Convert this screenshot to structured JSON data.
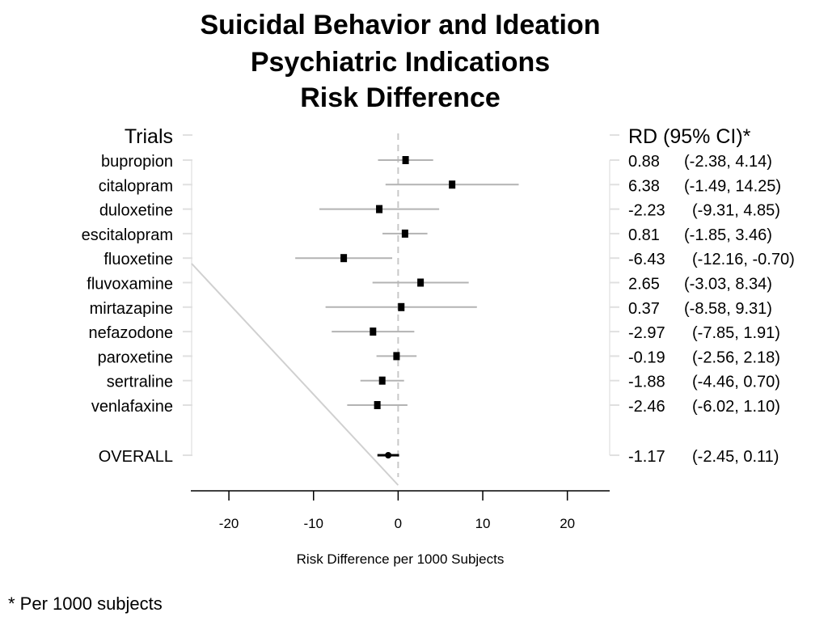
{
  "title": {
    "line1": "Suicidal Behavior and Ideation",
    "line2": "Psychiatric Indications",
    "line3": "Risk Difference"
  },
  "left_header": "Trials",
  "right_header": "RD (95% CI)*",
  "footnote": "* Per 1000 subjects",
  "colors": {
    "ci_line": "#b3b3b3",
    "marker": "#000000",
    "axis": "#000000",
    "diag": "#d0d0d0",
    "zero_line": "#c8c8c8"
  },
  "chart_data": {
    "type": "forest",
    "xlabel": "Risk Difference per 1000 Subjects",
    "xlim": [
      -24.5,
      25
    ],
    "xticks": [
      -20,
      -10,
      0,
      10,
      20
    ],
    "xtick_labels": [
      "-20",
      "-10",
      "0",
      "10",
      "20"
    ],
    "rows": [
      {
        "label": "bupropion",
        "rd": 0.88,
        "lo": -2.38,
        "hi": 4.14,
        "rd_text": "0.88",
        "ci_text": "(-2.38, 4.14)"
      },
      {
        "label": "citalopram",
        "rd": 6.38,
        "lo": -1.49,
        "hi": 14.25,
        "rd_text": "6.38",
        "ci_text": "(-1.49, 14.25)"
      },
      {
        "label": "duloxetine",
        "rd": -2.23,
        "lo": -9.31,
        "hi": 4.85,
        "rd_text": "-2.23",
        "ci_text": "(-9.31, 4.85)"
      },
      {
        "label": "escitalopram",
        "rd": 0.81,
        "lo": -1.85,
        "hi": 3.46,
        "rd_text": "0.81",
        "ci_text": "(-1.85, 3.46)"
      },
      {
        "label": "fluoxetine",
        "rd": -6.43,
        "lo": -12.16,
        "hi": -0.7,
        "rd_text": "-6.43",
        "ci_text": "(-12.16, -0.70)"
      },
      {
        "label": "fluvoxamine",
        "rd": 2.65,
        "lo": -3.03,
        "hi": 8.34,
        "rd_text": "2.65",
        "ci_text": "(-3.03, 8.34)"
      },
      {
        "label": "mirtazapine",
        "rd": 0.37,
        "lo": -8.58,
        "hi": 9.31,
        "rd_text": "0.37",
        "ci_text": "(-8.58, 9.31)"
      },
      {
        "label": "nefazodone",
        "rd": -2.97,
        "lo": -7.85,
        "hi": 1.91,
        "rd_text": "-2.97",
        "ci_text": "(-7.85, 1.91)"
      },
      {
        "label": "paroxetine",
        "rd": -0.19,
        "lo": -2.56,
        "hi": 2.18,
        "rd_text": "-0.19",
        "ci_text": "(-2.56, 2.18)"
      },
      {
        "label": "sertraline",
        "rd": -1.88,
        "lo": -4.46,
        "hi": 0.7,
        "rd_text": "-1.88",
        "ci_text": "(-4.46, 0.70)"
      },
      {
        "label": "venlafaxine",
        "rd": -2.46,
        "lo": -6.02,
        "hi": 1.1,
        "rd_text": "-2.46",
        "ci_text": "(-6.02, 1.10)"
      }
    ],
    "overall": {
      "label": "OVERALL",
      "rd": -1.17,
      "lo": -2.45,
      "hi": 0.11,
      "rd_text": "-1.17",
      "ci_text": "(-2.45, 0.11)"
    }
  }
}
